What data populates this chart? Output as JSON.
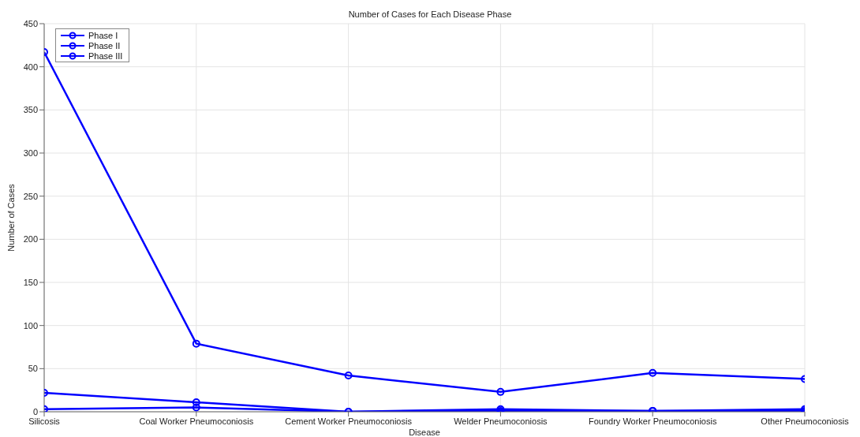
{
  "chart_data": {
    "type": "line",
    "title": "Number of Cases for Each Disease Phase",
    "xlabel": "Disease",
    "ylabel": "Number of Cases",
    "categories": [
      "Silicosis",
      "Coal Worker Pneumoconiosis",
      "Cement Worker Pneumoconiosis",
      "Welder Pneumoconiosis",
      "Foundry Worker Pneumoconiosis",
      "Other Pneumoconiosis"
    ],
    "series": [
      {
        "name": "Phase I",
        "color": "#0000ff",
        "values": [
          417,
          79,
          42,
          23,
          45,
          38
        ]
      },
      {
        "name": "Phase II",
        "color": "#0000ff",
        "values": [
          22,
          11,
          0,
          3,
          1,
          3
        ]
      },
      {
        "name": "Phase III",
        "color": "#0000ff",
        "values": [
          3,
          5,
          0,
          1,
          1,
          1
        ]
      }
    ],
    "ylim": [
      0,
      450
    ],
    "yticks": [
      0,
      50,
      100,
      150,
      200,
      250,
      300,
      350,
      400,
      450
    ],
    "grid": true,
    "legend": "top left",
    "marker": "circle",
    "line_style": "solid"
  }
}
